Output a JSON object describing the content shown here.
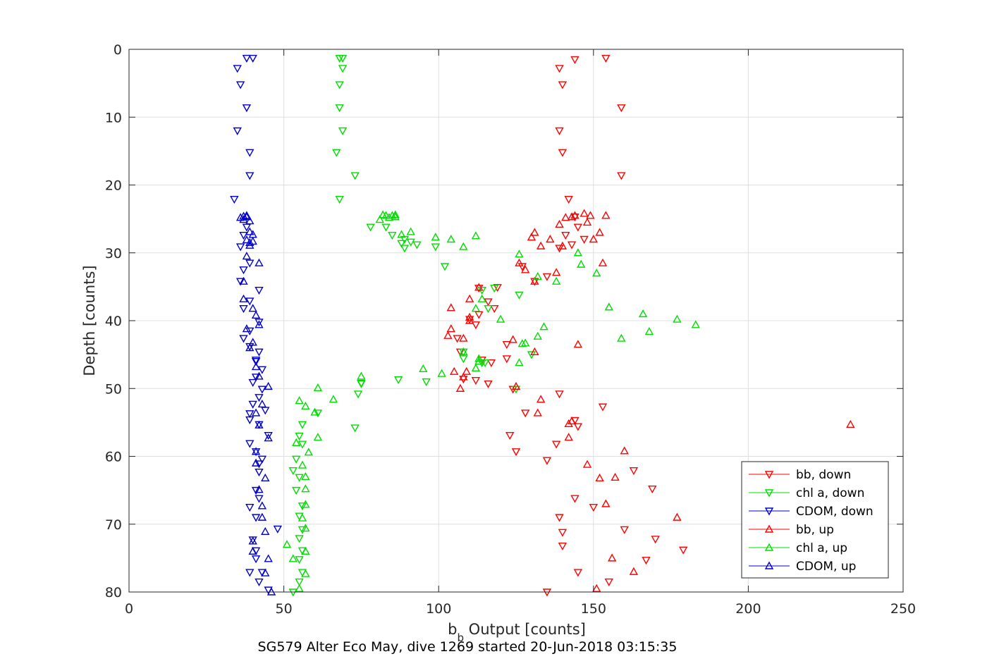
{
  "chart_data": {
    "type": "scatter",
    "title": "SG579 Alter Eco May, dive 1269 started 20-Jun-2018 03:15:35",
    "xlabel": {
      "main": "b",
      "sub": "b",
      "rest": " Output [counts]"
    },
    "ylabel": "Depth [counts]",
    "xlim": [
      0,
      250
    ],
    "ylim": [
      0,
      80
    ],
    "y_reversed": true,
    "xticks": [
      0,
      50,
      100,
      150,
      200,
      250
    ],
    "yticks": [
      0,
      10,
      20,
      30,
      40,
      50,
      60,
      70,
      80
    ],
    "grid": true,
    "legend_position": "bottom-right",
    "series": [
      {
        "name": "bb, down",
        "color": "#ff0000",
        "marker": "triangle-down",
        "points": [
          [
            154,
            1.3
          ],
          [
            144,
            1.5
          ],
          [
            139,
            2.8
          ],
          [
            140,
            5.2
          ],
          [
            159,
            8.6
          ],
          [
            139,
            12
          ],
          [
            140,
            15.2
          ],
          [
            159,
            18.6
          ],
          [
            142,
            22.1
          ],
          [
            144,
            24.7
          ],
          [
            145,
            26.2
          ],
          [
            141,
            27.4
          ],
          [
            147,
            28
          ],
          [
            139,
            29.3
          ],
          [
            143,
            28.8
          ],
          [
            127,
            32
          ],
          [
            135,
            33.5
          ],
          [
            131,
            34.2
          ],
          [
            119,
            35.1
          ],
          [
            113,
            35.2
          ],
          [
            116,
            37.2
          ],
          [
            118,
            38.2
          ],
          [
            113,
            39.1
          ],
          [
            110,
            39.8
          ],
          [
            112,
            40.6
          ],
          [
            106,
            42.6
          ],
          [
            122,
            43.5
          ],
          [
            107,
            44.6
          ],
          [
            122,
            45.6
          ],
          [
            114,
            45.8
          ],
          [
            117,
            46.2
          ],
          [
            108,
            48.6
          ],
          [
            112,
            48.8
          ],
          [
            116,
            49.3
          ],
          [
            124,
            50.1
          ],
          [
            139,
            50.8
          ],
          [
            153,
            52.7
          ],
          [
            128,
            53.6
          ],
          [
            144,
            54.7
          ],
          [
            145,
            55.6
          ],
          [
            123,
            56.9
          ],
          [
            138,
            58.2
          ],
          [
            125,
            59.3
          ],
          [
            135,
            60.6
          ],
          [
            163,
            62.1
          ],
          [
            169,
            64.8
          ],
          [
            144,
            66.2
          ],
          [
            150,
            67.5
          ],
          [
            160,
            70.8
          ],
          [
            139,
            69
          ],
          [
            140,
            71.2
          ],
          [
            170,
            72.2
          ],
          [
            140,
            73.2
          ],
          [
            179,
            73.8
          ],
          [
            167,
            75.3
          ],
          [
            145,
            77.1
          ],
          [
            155,
            78.5
          ],
          [
            135,
            80
          ]
        ]
      },
      {
        "name": "chl a, down",
        "color": "#00dd00",
        "marker": "triangle-down",
        "points": [
          [
            68,
            1.3
          ],
          [
            69,
            1.3
          ],
          [
            69,
            2.8
          ],
          [
            68,
            5.2
          ],
          [
            68,
            8.6
          ],
          [
            69,
            12
          ],
          [
            67,
            15.2
          ],
          [
            73,
            18.6
          ],
          [
            68,
            22.1
          ],
          [
            78,
            26.2
          ],
          [
            83,
            26.2
          ],
          [
            85,
            27.4
          ],
          [
            89,
            28
          ],
          [
            91,
            28.4
          ],
          [
            88,
            28.6
          ],
          [
            93,
            28.8
          ],
          [
            89,
            29.3
          ],
          [
            99,
            29.1
          ],
          [
            102,
            32
          ],
          [
            118,
            35.2
          ],
          [
            114,
            35.5
          ],
          [
            116,
            38.2
          ],
          [
            126,
            36.2
          ],
          [
            108,
            44.6
          ],
          [
            130,
            45
          ],
          [
            108,
            45.6
          ],
          [
            115,
            46.2
          ],
          [
            114,
            46.2
          ],
          [
            75,
            49.3
          ],
          [
            87,
            48.7
          ],
          [
            96,
            49
          ],
          [
            75,
            49.2
          ],
          [
            74,
            50.8
          ],
          [
            125,
            50.1
          ],
          [
            73,
            55.8
          ],
          [
            61,
            53.6
          ],
          [
            56,
            55.3
          ],
          [
            55,
            57
          ],
          [
            56,
            58.2
          ],
          [
            54,
            60.4
          ],
          [
            53,
            62.1
          ],
          [
            55,
            63.1
          ],
          [
            54,
            65
          ],
          [
            56,
            67.3
          ],
          [
            55,
            68.8
          ],
          [
            56,
            70.8
          ],
          [
            55,
            72.1
          ],
          [
            56,
            73.9
          ],
          [
            55,
            75.2
          ],
          [
            56,
            77.1
          ],
          [
            55,
            78.5
          ],
          [
            53,
            80
          ]
        ]
      },
      {
        "name": "CDOM, down",
        "color": "#0000cc",
        "marker": "triangle-down",
        "points": [
          [
            40,
            1.3
          ],
          [
            38,
            1.3
          ],
          [
            35,
            2.8
          ],
          [
            36,
            5.2
          ],
          [
            38,
            8.6
          ],
          [
            35,
            12
          ],
          [
            39,
            15.2
          ],
          [
            39,
            18.6
          ],
          [
            34,
            22.1
          ],
          [
            38,
            26.2
          ],
          [
            37,
            27.4
          ],
          [
            36,
            29.1
          ],
          [
            39,
            31.5
          ],
          [
            37,
            32.5
          ],
          [
            36,
            34.2
          ],
          [
            42,
            35.5
          ],
          [
            39,
            37.1
          ],
          [
            37,
            38.2
          ],
          [
            42,
            40.2
          ],
          [
            39,
            41.5
          ],
          [
            37,
            42.6
          ],
          [
            39,
            43.8
          ],
          [
            42,
            44.6
          ],
          [
            41,
            45.8
          ],
          [
            41,
            46
          ],
          [
            43,
            47.2
          ],
          [
            41,
            48.3
          ],
          [
            40,
            49.1
          ],
          [
            43,
            50.1
          ],
          [
            42,
            51.3
          ],
          [
            40,
            52.3
          ],
          [
            44,
            53.2
          ],
          [
            39,
            53.7
          ],
          [
            39,
            54.6
          ],
          [
            42,
            55.3
          ],
          [
            45,
            56.9
          ],
          [
            39,
            58.1
          ],
          [
            41,
            59.3
          ],
          [
            43,
            60.4
          ],
          [
            42,
            61.1
          ],
          [
            42,
            62.3
          ],
          [
            41,
            65
          ],
          [
            42,
            66.2
          ],
          [
            39,
            67.5
          ],
          [
            41,
            69
          ],
          [
            40,
            72.3
          ],
          [
            41,
            73.9
          ],
          [
            41,
            75.1
          ],
          [
            39,
            77.1
          ],
          [
            43,
            77.1
          ],
          [
            42,
            78.5
          ],
          [
            45,
            79.7
          ],
          [
            48,
            70.7
          ]
        ]
      },
      {
        "name": "bb, up",
        "color": "#ff0000",
        "marker": "triangle-up",
        "points": [
          [
            154,
            24.5
          ],
          [
            149,
            24.5
          ],
          [
            147,
            24.2
          ],
          [
            144,
            24.5
          ],
          [
            143,
            24.7
          ],
          [
            141,
            24.8
          ],
          [
            139,
            25.8
          ],
          [
            148,
            25.5
          ],
          [
            152,
            27
          ],
          [
            131,
            27
          ],
          [
            130,
            27.7
          ],
          [
            136,
            28
          ],
          [
            150,
            28
          ],
          [
            140,
            29
          ],
          [
            133,
            29
          ],
          [
            128,
            32.5
          ],
          [
            153,
            31.5
          ],
          [
            126,
            31.5
          ],
          [
            138,
            32.9
          ],
          [
            131,
            34.2
          ],
          [
            113,
            35.1
          ],
          [
            110,
            36.8
          ],
          [
            104,
            38.1
          ],
          [
            110,
            39.5
          ],
          [
            110,
            40
          ],
          [
            104,
            41.2
          ],
          [
            103,
            42.2
          ],
          [
            108,
            42.6
          ],
          [
            124,
            42.8
          ],
          [
            131,
            44.6
          ],
          [
            145,
            43.5
          ],
          [
            125,
            49.7
          ],
          [
            109,
            47.5
          ],
          [
            105,
            47.5
          ],
          [
            108,
            48.3
          ],
          [
            107,
            50
          ],
          [
            133,
            51.6
          ],
          [
            132,
            53.6
          ],
          [
            142,
            57.2
          ],
          [
            143,
            54.8
          ],
          [
            142,
            55.2
          ],
          [
            160,
            59.2
          ],
          [
            148,
            61.2
          ],
          [
            152,
            63.2
          ],
          [
            157,
            63.1
          ],
          [
            154,
            67
          ],
          [
            151,
            79.5
          ],
          [
            156,
            75
          ],
          [
            163,
            77
          ],
          [
            177,
            69
          ],
          [
            233,
            55.3
          ]
        ]
      },
      {
        "name": "chl a, up",
        "color": "#00dd00",
        "marker": "triangle-up",
        "points": [
          [
            82,
            24.4
          ],
          [
            83,
            24.5
          ],
          [
            85,
            24.5
          ],
          [
            86,
            24.4
          ],
          [
            84,
            24.8
          ],
          [
            81,
            25.1
          ],
          [
            86,
            24.7
          ],
          [
            112,
            27.5
          ],
          [
            104,
            28
          ],
          [
            99,
            27.7
          ],
          [
            91,
            26.9
          ],
          [
            88,
            27.3
          ],
          [
            108,
            29.1
          ],
          [
            145,
            30
          ],
          [
            126,
            30.2
          ],
          [
            146,
            31.7
          ],
          [
            132,
            33.5
          ],
          [
            151,
            33
          ],
          [
            138,
            34.2
          ],
          [
            114,
            36.8
          ],
          [
            112,
            38.2
          ],
          [
            120,
            39.8
          ],
          [
            155,
            38
          ],
          [
            166,
            39
          ],
          [
            177,
            39.8
          ],
          [
            183,
            40.6
          ],
          [
            168,
            41.6
          ],
          [
            159,
            42.6
          ],
          [
            128,
            43.3
          ],
          [
            127,
            43.4
          ],
          [
            113,
            45.6
          ],
          [
            126,
            46.2
          ],
          [
            112,
            47
          ],
          [
            113,
            46
          ],
          [
            108,
            44.6
          ],
          [
            134,
            40.9
          ],
          [
            132,
            42.3
          ],
          [
            95,
            47.1
          ],
          [
            101,
            47.8
          ],
          [
            75,
            48.2
          ],
          [
            61,
            49.9
          ],
          [
            66,
            51.6
          ],
          [
            55,
            51.8
          ],
          [
            57,
            52.6
          ],
          [
            60,
            53.5
          ],
          [
            61,
            57.2
          ],
          [
            54,
            58
          ],
          [
            58,
            59.4
          ],
          [
            56,
            61.3
          ],
          [
            57,
            63
          ],
          [
            57,
            64.8
          ],
          [
            57,
            67.1
          ],
          [
            56,
            69.1
          ],
          [
            57,
            70.6
          ],
          [
            51,
            73
          ],
          [
            57,
            74
          ],
          [
            53,
            75.1
          ],
          [
            57,
            77.3
          ],
          [
            55,
            79.5
          ]
        ]
      },
      {
        "name": "CDOM, up",
        "color": "#0000cc",
        "marker": "triangle-up",
        "points": [
          [
            37,
            24.6
          ],
          [
            38,
            24.5
          ],
          [
            36,
            24.8
          ],
          [
            39,
            25.3
          ],
          [
            38,
            24.7
          ],
          [
            37,
            25.1
          ],
          [
            39,
            26.9
          ],
          [
            38,
            28.1
          ],
          [
            40,
            28.3
          ],
          [
            39,
            28.5
          ],
          [
            39,
            28.9
          ],
          [
            40,
            27.3
          ],
          [
            38,
            30.5
          ],
          [
            42,
            31.5
          ],
          [
            37,
            34.2
          ],
          [
            37,
            36.8
          ],
          [
            40,
            38.2
          ],
          [
            41,
            39.2
          ],
          [
            42,
            40.6
          ],
          [
            38,
            41.2
          ],
          [
            40,
            43.2
          ],
          [
            39,
            44
          ],
          [
            41,
            46.8
          ],
          [
            42,
            48.2
          ],
          [
            45,
            49.7
          ],
          [
            43,
            52.3
          ],
          [
            41,
            53.6
          ],
          [
            42,
            55.4
          ],
          [
            45,
            57.3
          ],
          [
            41,
            59.3
          ],
          [
            41,
            61
          ],
          [
            42,
            64.9
          ],
          [
            43,
            67.3
          ],
          [
            44,
            63.2
          ],
          [
            43,
            69
          ],
          [
            44,
            71.1
          ],
          [
            40,
            72.5
          ],
          [
            40,
            74
          ],
          [
            44,
            77.2
          ],
          [
            45,
            75.1
          ],
          [
            46,
            80
          ]
        ]
      }
    ]
  }
}
